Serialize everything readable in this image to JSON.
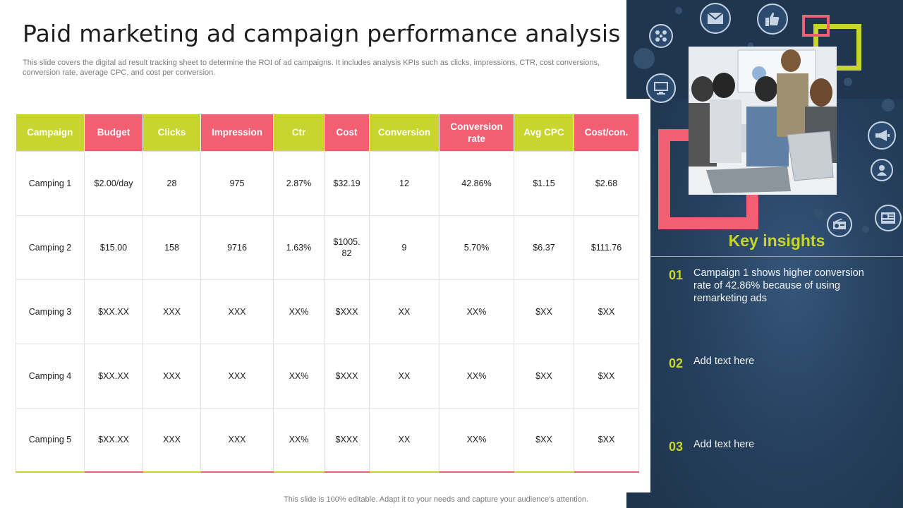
{
  "header": {
    "title": "Paid marketing ad campaign performance analysis",
    "subtitle": "This slide covers the digital ad result tracking sheet to determine the ROI of ad campaigns. It includes analysis KPIs such as clicks, impressions, CTR, cost conversions, conversion rate, average CPC, and cost per conversion."
  },
  "table": {
    "headers": [
      "Campaign",
      "Budget",
      "Clicks",
      "Impression",
      "Ctr",
      "Cost",
      "Conversion",
      "Conversion rate",
      "Avg CPC",
      "Cost/con."
    ],
    "rows": [
      [
        "Camping  1",
        "$2.00/day",
        "28",
        "975",
        "2.87%",
        "$32.19",
        "12",
        "42.86%",
        "$1.15",
        "$2.68"
      ],
      [
        "Camping  2",
        "$15.00",
        "158",
        "9716",
        "1.63%",
        "$1005.\n82",
        "9",
        "5.70%",
        "$6.37",
        "$111.76"
      ],
      [
        "Camping  3",
        "$XX.XX",
        "XXX",
        "XXX",
        "XX%",
        "$XXX",
        "XX",
        "XX%",
        "$XX",
        "$XX"
      ],
      [
        "Camping  4",
        "$XX.XX",
        "XXX",
        "XXX",
        "XX%",
        "$XXX",
        "XX",
        "XX%",
        "$XX",
        "$XX"
      ],
      [
        "Camping  5",
        "$XX.XX",
        "XXX",
        "XXX",
        "XX%",
        "$XXX",
        "XX",
        "XX%",
        "$XX",
        "$XX"
      ]
    ]
  },
  "insights": {
    "title": "Key insights",
    "items": [
      {
        "num": "01",
        "text": "Campaign 1 shows higher conversion rate of 42.86% because of using remarketing ads"
      },
      {
        "num": "02",
        "text": "Add text here"
      },
      {
        "num": "03",
        "text": "Add text here"
      }
    ]
  },
  "footer": {
    "note": "This slide is 100% editable. Adapt it to your needs and capture your audience's attention."
  },
  "icons": [
    "email-icon",
    "thumbs-up-icon",
    "network-icon",
    "monitor-icon",
    "megaphone-icon",
    "user-icon",
    "radio-icon",
    "newspaper-icon"
  ],
  "colors": {
    "accent_yellow": "#c8d52c",
    "accent_pink": "#f25f73",
    "panel_navy": "#1f3550"
  }
}
